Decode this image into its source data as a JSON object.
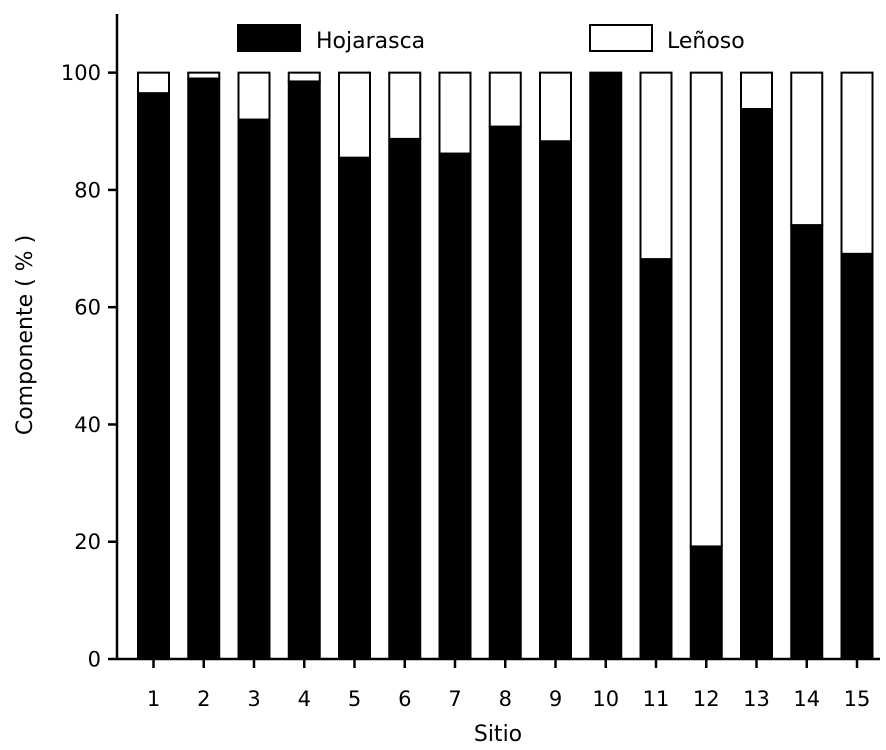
{
  "chart_data": {
    "type": "bar",
    "stacked": true,
    "xlabel": "Sitio",
    "ylabel": "Componente ( % )",
    "ylim": [
      0,
      110
    ],
    "yticks": [
      0,
      20,
      40,
      60,
      80,
      100
    ],
    "categories": [
      "1",
      "2",
      "3",
      "4",
      "5",
      "6",
      "7",
      "8",
      "9",
      "10",
      "11",
      "12",
      "13",
      "14",
      "15"
    ],
    "series": [
      {
        "name": "Hojarasca",
        "color": "#000000",
        "values": [
          96.5,
          99,
          92,
          98.5,
          85.5,
          88.7,
          86.2,
          90.8,
          88.3,
          100,
          68.2,
          19.2,
          93.8,
          74,
          69.1
        ]
      },
      {
        "name": "Leñoso",
        "color": "#ffffff",
        "values": [
          3.5,
          1,
          8,
          1.5,
          14.5,
          11.3,
          13.8,
          9.2,
          11.7,
          0,
          31.8,
          80.8,
          6.2,
          26,
          30.9
        ]
      }
    ],
    "legend": {
      "position": "top",
      "items": [
        "Hojarasca",
        "Leñoso"
      ]
    },
    "grid": false
  }
}
